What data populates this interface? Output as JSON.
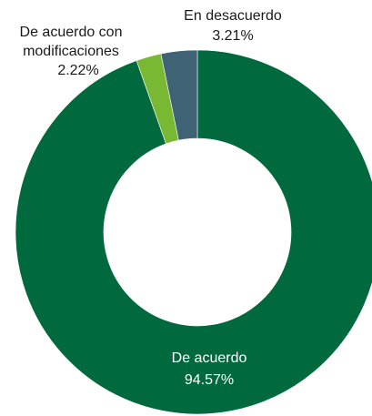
{
  "chart_data": {
    "type": "pie",
    "variant": "donut",
    "title": "",
    "slices": [
      {
        "label": "De acuerdo",
        "value_label": "94.57%",
        "value": 94.57,
        "color": "#00693e",
        "text_color": "#ffffff"
      },
      {
        "label": "De acuerdo con modificaciones",
        "label_lines": [
          "De acuerdo con",
          "modificaciones"
        ],
        "value_label": "2.22%",
        "value": 2.22,
        "color": "#78b833",
        "text_color": "#1a1a1a"
      },
      {
        "label": "En desacuerdo",
        "value_label": "3.21%",
        "value": 3.21,
        "color": "#3f6275",
        "text_color": "#1a1a1a"
      }
    ],
    "legend": "none",
    "labels": "on-chart"
  }
}
